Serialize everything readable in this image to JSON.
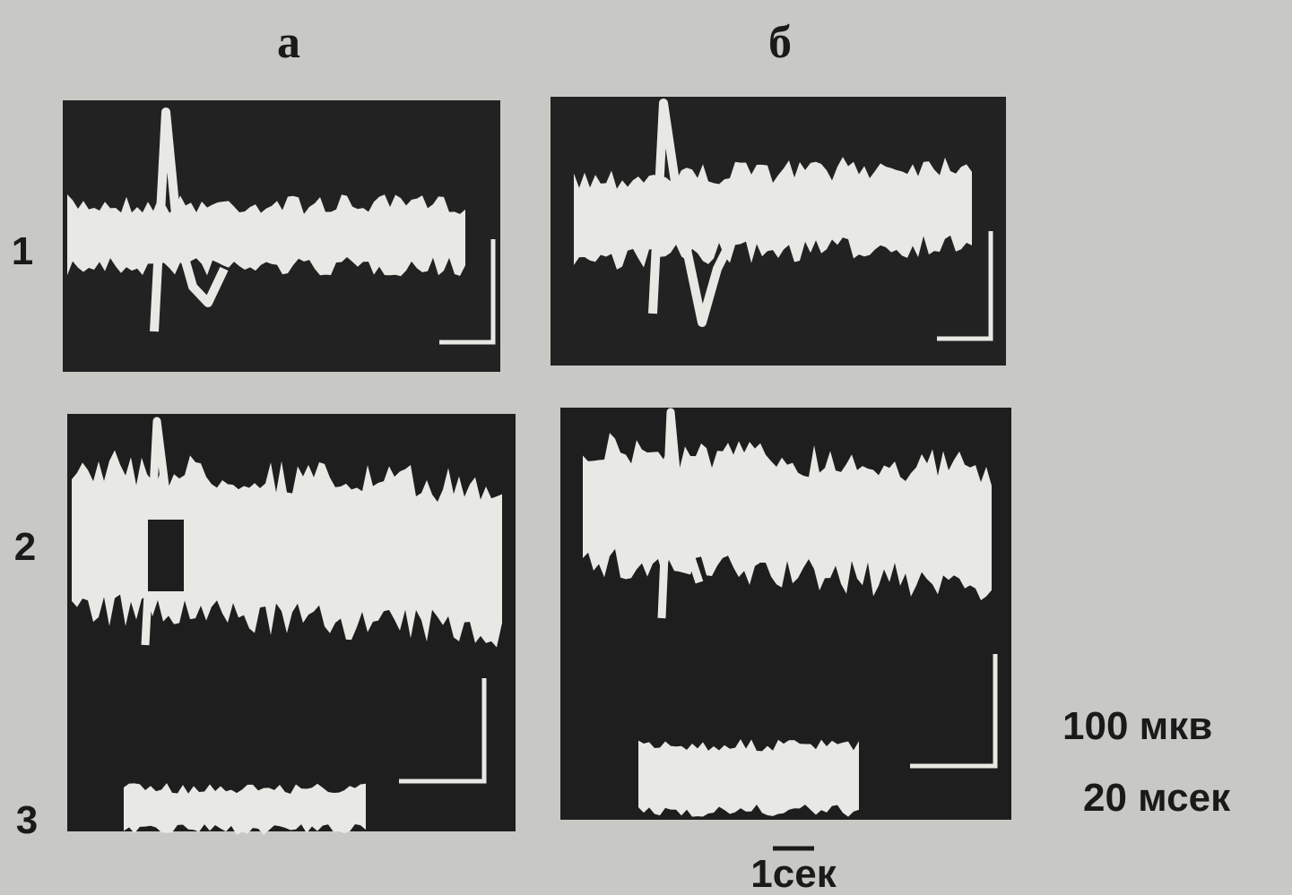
{
  "columns": [
    "а",
    "б"
  ],
  "rows": [
    "1",
    "2",
    "3"
  ],
  "scale": {
    "amplitude": "100 мкв",
    "time": "20 мсек",
    "stimulus_time": "1сек"
  }
}
